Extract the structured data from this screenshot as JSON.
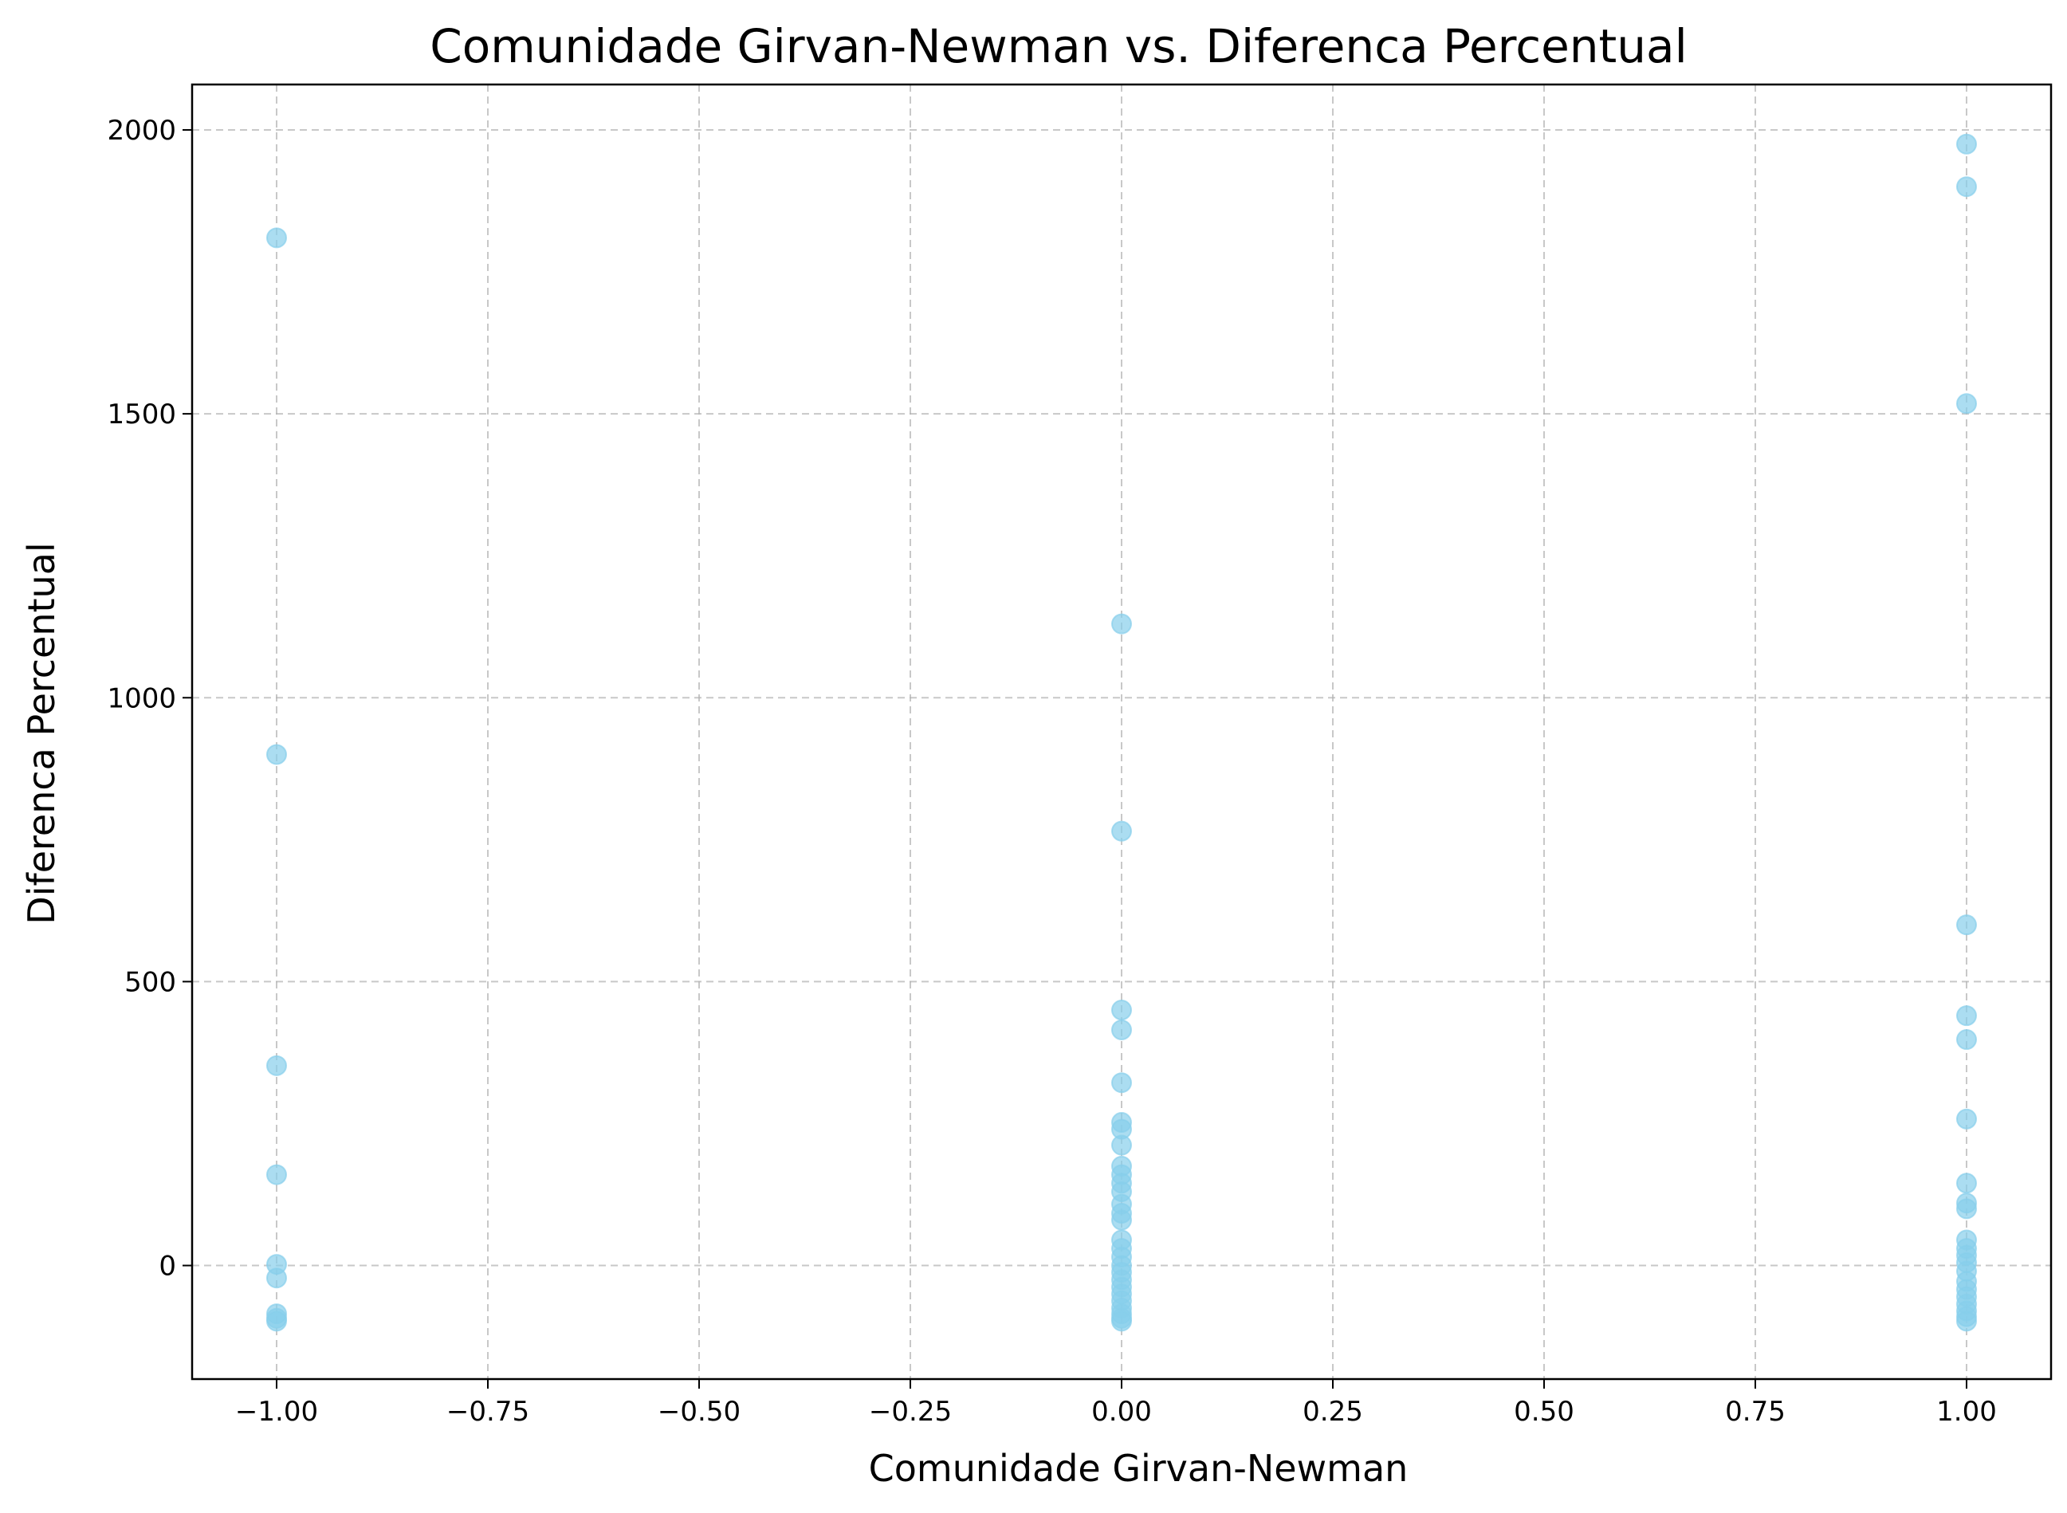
{
  "chart_data": {
    "type": "scatter",
    "title": "Comunidade Girvan-Newman vs. Diferenca Percentual",
    "xlabel": "Comunidade Girvan-Newman",
    "ylabel": "Diferenca Percentual",
    "xlim": [
      -1.1,
      1.1
    ],
    "ylim": [
      -200,
      2080
    ],
    "grid": true,
    "marker_color": "#87ceeb",
    "marker_alpha": 0.7,
    "x_ticks": [
      {
        "value": -1.0,
        "label": "−1.00"
      },
      {
        "value": -0.75,
        "label": "−0.75"
      },
      {
        "value": -0.5,
        "label": "−0.50"
      },
      {
        "value": -0.25,
        "label": "−0.25"
      },
      {
        "value": 0.0,
        "label": "0.00"
      },
      {
        "value": 0.25,
        "label": "0.25"
      },
      {
        "value": 0.5,
        "label": "0.50"
      },
      {
        "value": 0.75,
        "label": "0.75"
      },
      {
        "value": 1.0,
        "label": "1.00"
      }
    ],
    "y_ticks": [
      {
        "value": 0,
        "label": "0"
      },
      {
        "value": 500,
        "label": "500"
      },
      {
        "value": 1000,
        "label": "1000"
      },
      {
        "value": 1500,
        "label": "1500"
      },
      {
        "value": 2000,
        "label": "2000"
      }
    ],
    "points": [
      {
        "x": -1,
        "y": 1810
      },
      {
        "x": -1,
        "y": 900
      },
      {
        "x": -1,
        "y": 352
      },
      {
        "x": -1,
        "y": 160
      },
      {
        "x": -1,
        "y": 2
      },
      {
        "x": -1,
        "y": -22
      },
      {
        "x": -1,
        "y": -85
      },
      {
        "x": -1,
        "y": -93
      },
      {
        "x": -1,
        "y": -98
      },
      {
        "x": 0,
        "y": 1130
      },
      {
        "x": 0,
        "y": 765
      },
      {
        "x": 0,
        "y": 450
      },
      {
        "x": 0,
        "y": 415
      },
      {
        "x": 0,
        "y": 322
      },
      {
        "x": 0,
        "y": 252
      },
      {
        "x": 0,
        "y": 240
      },
      {
        "x": 0,
        "y": 212
      },
      {
        "x": 0,
        "y": 175
      },
      {
        "x": 0,
        "y": 160
      },
      {
        "x": 0,
        "y": 145
      },
      {
        "x": 0,
        "y": 130
      },
      {
        "x": 0,
        "y": 108
      },
      {
        "x": 0,
        "y": 92
      },
      {
        "x": 0,
        "y": 80
      },
      {
        "x": 0,
        "y": 45
      },
      {
        "x": 0,
        "y": 30
      },
      {
        "x": 0,
        "y": 15
      },
      {
        "x": 0,
        "y": 0
      },
      {
        "x": 0,
        "y": -12
      },
      {
        "x": 0,
        "y": -25
      },
      {
        "x": 0,
        "y": -38
      },
      {
        "x": 0,
        "y": -50
      },
      {
        "x": 0,
        "y": -62
      },
      {
        "x": 0,
        "y": -75
      },
      {
        "x": 0,
        "y": -85
      },
      {
        "x": 0,
        "y": -93
      },
      {
        "x": 0,
        "y": -98
      },
      {
        "x": 1,
        "y": 1975
      },
      {
        "x": 1,
        "y": 1900
      },
      {
        "x": 1,
        "y": 1518
      },
      {
        "x": 1,
        "y": 600
      },
      {
        "x": 1,
        "y": 440
      },
      {
        "x": 1,
        "y": 398
      },
      {
        "x": 1,
        "y": 258
      },
      {
        "x": 1,
        "y": 145
      },
      {
        "x": 1,
        "y": 110
      },
      {
        "x": 1,
        "y": 100
      },
      {
        "x": 1,
        "y": 45
      },
      {
        "x": 1,
        "y": 30
      },
      {
        "x": 1,
        "y": 18
      },
      {
        "x": 1,
        "y": 5
      },
      {
        "x": 1,
        "y": -10
      },
      {
        "x": 1,
        "y": -28
      },
      {
        "x": 1,
        "y": -42
      },
      {
        "x": 1,
        "y": -55
      },
      {
        "x": 1,
        "y": -68
      },
      {
        "x": 1,
        "y": -80
      },
      {
        "x": 1,
        "y": -90
      },
      {
        "x": 1,
        "y": -98
      }
    ]
  }
}
